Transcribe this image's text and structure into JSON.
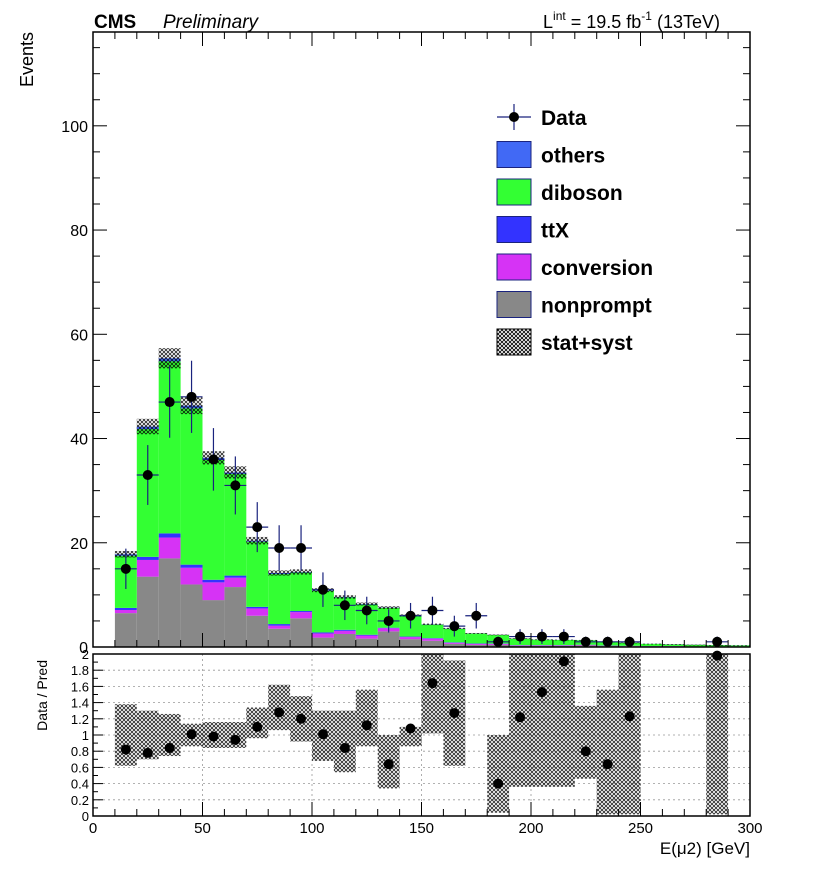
{
  "header": {
    "experiment": "CMS",
    "status": "Preliminary",
    "lumi_prefix": "L",
    "lumi_sup": "int",
    "lumi_middle": " = 19.5 fb",
    "lumi_exp": "-1",
    "lumi_suffix": " (13TeV)"
  },
  "legend": {
    "placement": "top-right",
    "entries": [
      {
        "key": "data",
        "label": "Data",
        "style": "marker",
        "color": "#000000"
      },
      {
        "key": "others",
        "label": "others",
        "style": "fill",
        "color": "#4169f5"
      },
      {
        "key": "diboson",
        "label": "diboson",
        "style": "fill",
        "color": "#33ff33"
      },
      {
        "key": "ttx",
        "label": "ttX",
        "style": "fill",
        "color": "#3333ff"
      },
      {
        "key": "conversion",
        "label": "conversion",
        "style": "fill",
        "color": "#d633f5"
      },
      {
        "key": "nonprompt",
        "label": "nonprompt",
        "style": "fill",
        "color": "#888888"
      },
      {
        "key": "unc",
        "label": "stat+syst",
        "style": "hatch",
        "color": "#000000"
      }
    ]
  },
  "chart_data": [
    {
      "type": "histogram",
      "stacked": true,
      "ylabel": "Events",
      "xlim": [
        0,
        300
      ],
      "ylim": [
        0,
        118
      ],
      "y_ticks": [
        0,
        20,
        40,
        60,
        80,
        100
      ],
      "bin_edges": [
        10,
        20,
        30,
        40,
        50,
        60,
        70,
        80,
        90,
        100,
        110,
        120,
        130,
        140,
        150,
        160,
        170,
        180,
        190,
        200,
        210,
        220,
        230,
        240,
        250,
        260,
        270,
        280,
        290,
        300
      ],
      "series": [
        {
          "name": "nonprompt",
          "color": "#888888",
          "values": [
            6.5,
            13.5,
            17,
            12,
            9,
            11.5,
            6,
            3.5,
            5.5,
            1.8,
            2.5,
            1.6,
            3,
            1.5,
            1.2,
            0.6,
            0.4,
            0.4,
            0.2,
            0.2,
            0.2,
            0.3,
            0.2,
            0.15,
            0.1,
            0.1,
            0.05,
            0.05,
            0.05
          ]
        },
        {
          "name": "conversion",
          "color": "#d633f5",
          "values": [
            0.6,
            3.2,
            4,
            3.2,
            3.4,
            1.8,
            1.4,
            0.6,
            1.2,
            0.8,
            0.6,
            0.6,
            0.6,
            0.4,
            0.4,
            0.2,
            0.2,
            0.2,
            0.1,
            0.1,
            0.1,
            0.1,
            0.05,
            0.05,
            0.05,
            0.05,
            0.02,
            0.02,
            0.02
          ]
        },
        {
          "name": "ttX",
          "color": "#3333ff",
          "values": [
            0.4,
            0.6,
            0.8,
            0.6,
            0.5,
            0.4,
            0.3,
            0.3,
            0.2,
            0.2,
            0.2,
            0.15,
            0.1,
            0.1,
            0.1,
            0.1,
            0.08,
            0.05,
            0.05,
            0.05,
            0.05,
            0.04,
            0.03,
            0.03,
            0.02,
            0.02,
            0.02,
            0.02,
            0.02
          ]
        },
        {
          "name": "diboson",
          "color": "#33ff33",
          "values": [
            10,
            24.5,
            33,
            30,
            23,
            19.5,
            12.5,
            9.6,
            7.4,
            8,
            6.2,
            5.8,
            3.8,
            4,
            2.6,
            2.6,
            1.9,
            1.65,
            1.25,
            1.05,
            1,
            0.85,
            0.72,
            0.57,
            0.43,
            0.33,
            0.33,
            0.26,
            0.21
          ]
        },
        {
          "name": "others",
          "color": "#4169f5",
          "values": [
            0.3,
            0.5,
            0.6,
            0.5,
            0.4,
            0.3,
            0.2,
            0.2,
            0.1,
            0.1,
            0.1,
            0.1,
            0.05,
            0.05,
            0.05,
            0.05,
            0.02,
            0.02,
            0.02,
            0.02,
            0.02,
            0.02,
            0.02,
            0.02,
            0.02,
            0.02,
            0.02,
            0.02,
            0.02
          ]
        }
      ],
      "uncertainty": {
        "name": "stat+syst",
        "relative": 0.035
      },
      "data": {
        "name": "Data",
        "x": [
          15,
          25,
          35,
          45,
          55,
          65,
          75,
          85,
          95,
          105,
          115,
          125,
          135,
          145,
          155,
          165,
          175,
          185,
          195,
          205,
          215,
          225,
          235,
          245,
          285
        ],
        "y": [
          15,
          33,
          47,
          48,
          36,
          31,
          23,
          19,
          19,
          11,
          8,
          7,
          5,
          6,
          7,
          4,
          6,
          1,
          2,
          2,
          2,
          1,
          1,
          1,
          1
        ],
        "xerr": 5
      }
    },
    {
      "type": "ratio",
      "ylabel": "Data / Pred",
      "xlabel": "E(μ2) [GeV]",
      "xlim": [
        0,
        300
      ],
      "ylim": [
        0,
        2
      ],
      "x_ticks": [
        0,
        50,
        100,
        150,
        200,
        250,
        300
      ],
      "y_ticks": [
        0,
        0.2,
        0.4,
        0.6,
        0.8,
        1,
        1.2,
        1.4,
        1.6,
        1.8,
        2
      ],
      "y_tick_labels": [
        "0",
        "0.2",
        "0.4",
        "0.6",
        "0.8",
        "1",
        "1.2",
        "1.4",
        "1.6",
        "1.8",
        "2"
      ],
      "band": [
        [
          10,
          20,
          0.62,
          1.38
        ],
        [
          20,
          30,
          0.7,
          1.3
        ],
        [
          30,
          40,
          0.74,
          1.26
        ],
        [
          40,
          50,
          0.86,
          1.14
        ],
        [
          50,
          60,
          0.84,
          1.16
        ],
        [
          60,
          70,
          0.84,
          1.16
        ],
        [
          70,
          80,
          0.96,
          1.34
        ],
        [
          80,
          90,
          1.06,
          1.62
        ],
        [
          90,
          100,
          0.92,
          1.48
        ],
        [
          100,
          110,
          0.68,
          1.3
        ],
        [
          110,
          120,
          0.54,
          1.3
        ],
        [
          120,
          130,
          0.86,
          1.56
        ],
        [
          130,
          140,
          0.34,
          1.0
        ],
        [
          140,
          150,
          0.86,
          1.1
        ],
        [
          150,
          160,
          1.02,
          2.0
        ],
        [
          160,
          170,
          0.62,
          1.92
        ],
        [
          170,
          180,
          1.0,
          1.0
        ],
        [
          180,
          190,
          0.04,
          1.0
        ],
        [
          190,
          200,
          0.36,
          2.0
        ],
        [
          200,
          210,
          0.36,
          2.0
        ],
        [
          210,
          220,
          0.36,
          2.0
        ],
        [
          220,
          230,
          0.46,
          1.36
        ],
        [
          230,
          240,
          0.02,
          1.56
        ],
        [
          240,
          250,
          0.02,
          2.0
        ],
        [
          250,
          280,
          1.0,
          1.0
        ],
        [
          280,
          290,
          0.02,
          2.0
        ],
        [
          290,
          300,
          1.0,
          1.0
        ]
      ],
      "points": {
        "x": [
          15,
          25,
          35,
          45,
          55,
          65,
          75,
          85,
          95,
          105,
          115,
          125,
          135,
          145,
          155,
          165,
          185,
          195,
          205,
          215,
          225,
          235,
          245,
          285
        ],
        "y": [
          0.82,
          0.78,
          0.84,
          1.01,
          0.98,
          0.94,
          1.1,
          1.28,
          1.2,
          1.01,
          0.84,
          1.12,
          0.64,
          1.08,
          1.64,
          1.27,
          0.4,
          1.22,
          1.53,
          1.91,
          0.8,
          0.64,
          1.23,
          1.98
        ]
      }
    }
  ]
}
